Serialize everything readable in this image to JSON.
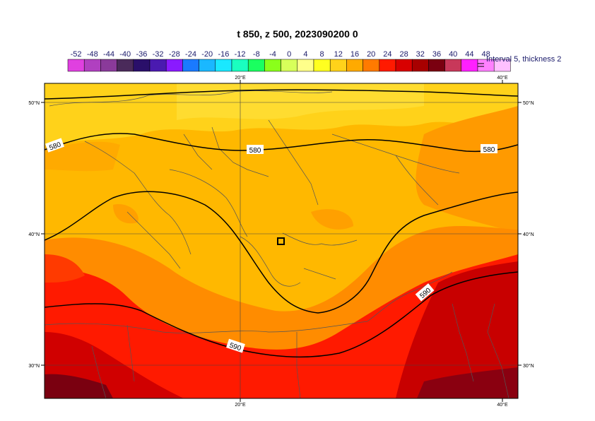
{
  "title": "t 850, z 500, 2023090200 0",
  "colorbar": {
    "tick_labels": [
      "-52",
      "-48",
      "-44",
      "-40",
      "-36",
      "-32",
      "-28",
      "-24",
      "-20",
      "-16",
      "-12",
      "-8",
      "-4",
      "0",
      "4",
      "8",
      "12",
      "16",
      "20",
      "24",
      "28",
      "32",
      "36",
      "40",
      "44",
      "48"
    ],
    "colors": [
      "#e040e0",
      "#b040c0",
      "#8a3a9a",
      "#4a2a5a",
      "#2a0f6a",
      "#4a1ab0",
      "#8a1aff",
      "#1a7aff",
      "#1ab8ff",
      "#1ae8ff",
      "#1affc0",
      "#1aff60",
      "#8aff1a",
      "#d8ff5a",
      "#ffff8a",
      "#ffff20",
      "#ffd21a",
      "#ffaa00",
      "#ff7a00",
      "#ff1a00",
      "#d80000",
      "#a80000",
      "#7a0010",
      "#c8385a",
      "#ff20ff",
      "#ff80ff",
      "#ffc0ff"
    ],
    "legend_text": "Interval 5, thickness 2"
  },
  "map": {
    "lat_labels": [
      "50°N",
      "40°N",
      "30°N"
    ],
    "lon_labels": [
      "20°E",
      "40°E"
    ],
    "contour_labels": [
      "580",
      "580",
      "580",
      "590",
      "590"
    ],
    "marker": "station-marker"
  }
}
